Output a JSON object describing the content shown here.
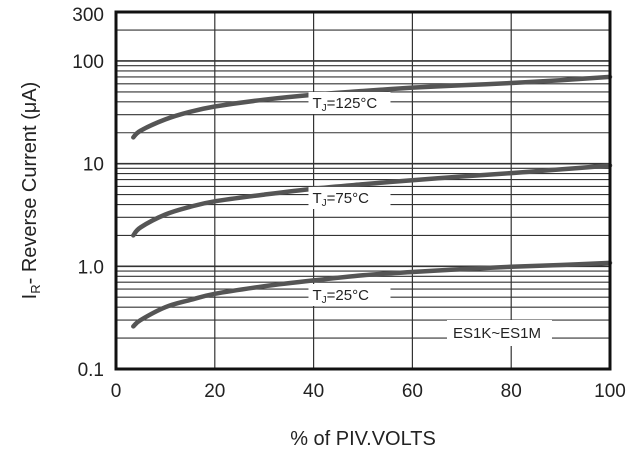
{
  "chart_data": {
    "type": "line",
    "xlabel": "% of PIV.VOLTS",
    "ylabel_parts": [
      "I",
      "R",
      "- Reverse Current (μA)"
    ],
    "x_scale": "linear",
    "y_scale": "log",
    "xlim": [
      0,
      100
    ],
    "ylim": [
      0.1,
      300
    ],
    "x_ticks": [
      0,
      20,
      40,
      60,
      80,
      100
    ],
    "x_tick_labels": [
      "0",
      "20",
      "40",
      "60",
      "80",
      "100"
    ],
    "y_ticks": [
      0.1,
      1.0,
      10,
      100,
      300
    ],
    "y_tick_labels": [
      "0.1",
      "1.0",
      "10",
      "100",
      "300"
    ],
    "grid": true,
    "series": [
      {
        "label_parts": [
          "T",
          "J",
          "=125°C"
        ],
        "x": [
          3.5,
          5,
          10,
          15,
          20,
          30,
          40,
          50,
          60,
          70,
          80,
          90,
          100
        ],
        "y": [
          18,
          21,
          27,
          32,
          36,
          42,
          47,
          51,
          55,
          58,
          61,
          65,
          70
        ]
      },
      {
        "label_parts": [
          "T",
          "J",
          "=75°C"
        ],
        "x": [
          3.5,
          5,
          10,
          15,
          20,
          30,
          40,
          50,
          60,
          70,
          80,
          90,
          100
        ],
        "y": [
          2.0,
          2.4,
          3.2,
          3.8,
          4.3,
          5.0,
          5.7,
          6.3,
          6.9,
          7.5,
          8.1,
          8.8,
          9.6
        ]
      },
      {
        "label_parts": [
          "T",
          "J",
          "=25°C"
        ],
        "x": [
          3.5,
          5,
          10,
          15,
          20,
          30,
          40,
          50,
          60,
          70,
          80,
          90,
          100
        ],
        "y": [
          0.26,
          0.3,
          0.4,
          0.47,
          0.54,
          0.64,
          0.73,
          0.82,
          0.88,
          0.94,
          0.99,
          1.03,
          1.08
        ]
      }
    ],
    "annotation": "ES1K~ES1M"
  },
  "colors": {
    "curve": "#555555",
    "grid": "#333333",
    "frame": "#111111",
    "text": "#222222",
    "background": "#ffffff"
  }
}
